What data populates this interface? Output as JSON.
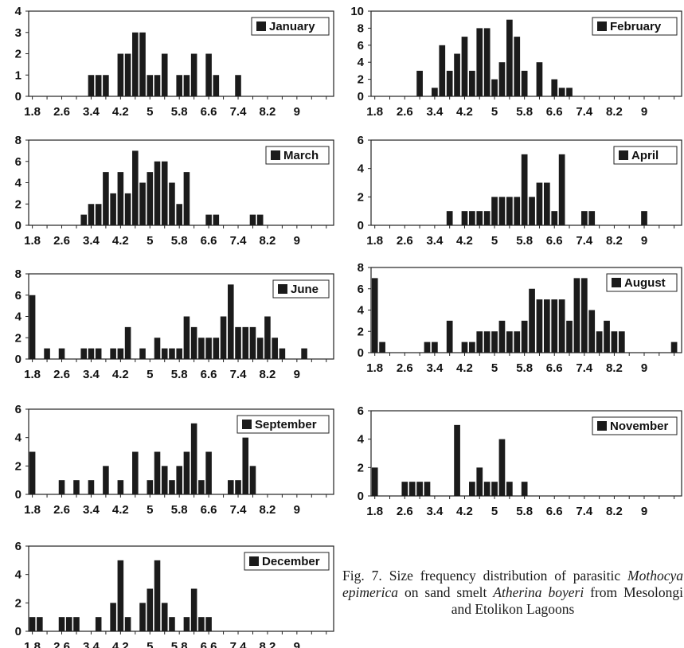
{
  "caption": {
    "fig": "Fig. 7.",
    "t1": "Size frequency distribution of parasitic",
    "species": "Mothocya epimerica",
    "t2": "on sand smelt",
    "host": "Atherina boyeri",
    "t3": "from Mesolongi and Etolikon Lagoons"
  },
  "chart_data": [
    {
      "type": "bar",
      "legend": "January",
      "x_ticks": [
        "1.8",
        "2.6",
        "3.4",
        "4.2",
        "5",
        "5.8",
        "6.6",
        "7.4",
        "8.2",
        "9"
      ],
      "ylim": [
        0,
        4
      ],
      "y_ticks": [
        0,
        1,
        2,
        3,
        4
      ],
      "grid": false,
      "legend_position": "top-right",
      "x": [
        3.4,
        3.6,
        3.8,
        4.2,
        4.4,
        4.6,
        4.8,
        5.0,
        5.2,
        5.4,
        5.8,
        6.0,
        6.2,
        6.6,
        6.8,
        7.4
      ],
      "values": [
        1,
        1,
        1,
        2,
        2,
        3,
        3,
        1,
        1,
        2,
        1,
        1,
        2,
        2,
        1,
        1
      ]
    },
    {
      "type": "bar",
      "legend": "February",
      "x_ticks": [
        "1.8",
        "2.6",
        "3.4",
        "4.2",
        "5",
        "5.8",
        "6.6",
        "7.4",
        "8.2",
        "9"
      ],
      "ylim": [
        0,
        10
      ],
      "y_ticks": [
        0,
        2,
        4,
        6,
        8,
        10
      ],
      "grid": false,
      "legend_position": "top-right",
      "x": [
        3.0,
        3.4,
        3.6,
        3.8,
        4.0,
        4.2,
        4.4,
        4.6,
        4.8,
        5.0,
        5.2,
        5.4,
        5.6,
        5.8,
        6.2,
        6.6,
        6.8,
        7.0
      ],
      "values": [
        3,
        1,
        6,
        3,
        5,
        7,
        3,
        8,
        8,
        2,
        4,
        9,
        7,
        3,
        4,
        2,
        1,
        1
      ]
    },
    {
      "type": "bar",
      "legend": "March",
      "x_ticks": [
        "1.8",
        "2.6",
        "3.4",
        "4.2",
        "5",
        "5.8",
        "6.6",
        "7.4",
        "8.2",
        "9"
      ],
      "ylim": [
        0,
        8
      ],
      "y_ticks": [
        0,
        2,
        4,
        6,
        8
      ],
      "grid": false,
      "legend_position": "top-right",
      "x": [
        3.2,
        3.4,
        3.6,
        3.8,
        4.0,
        4.2,
        4.4,
        4.6,
        4.8,
        5.0,
        5.2,
        5.4,
        5.6,
        5.8,
        6.0,
        6.2,
        6.6,
        6.8,
        7.8,
        8.0
      ],
      "values": [
        1,
        2,
        2,
        5,
        3,
        5,
        3,
        7,
        4,
        5,
        6,
        6,
        4,
        2,
        5,
        0,
        1,
        1,
        1,
        1
      ]
    },
    {
      "type": "bar",
      "legend": "April",
      "x_ticks": [
        "1.8",
        "2.6",
        "3.4",
        "4.2",
        "5",
        "5.8",
        "6.6",
        "7.4",
        "8.2",
        "9"
      ],
      "ylim": [
        0,
        6
      ],
      "y_ticks": [
        0,
        2,
        4,
        6
      ],
      "grid": false,
      "legend_position": "top-right",
      "x": [
        3.8,
        4.2,
        4.4,
        4.6,
        4.8,
        5.0,
        5.2,
        5.4,
        5.6,
        5.8,
        6.0,
        6.2,
        6.4,
        6.6,
        6.8,
        7.0,
        7.4,
        7.6,
        9.0
      ],
      "values": [
        1,
        1,
        1,
        1,
        1,
        2,
        2,
        2,
        2,
        5,
        2,
        3,
        3,
        1,
        5,
        0,
        1,
        1,
        1
      ]
    },
    {
      "type": "bar",
      "legend": "June",
      "x_ticks": [
        "1.8",
        "2.6",
        "3.4",
        "4.2",
        "5",
        "5.8",
        "6.6",
        "7.4",
        "8.2",
        "9"
      ],
      "ylim": [
        0,
        8
      ],
      "y_ticks": [
        0,
        2,
        4,
        6,
        8
      ],
      "grid": false,
      "legend_position": "top-right",
      "x": [
        1.8,
        2.2,
        2.6,
        3.2,
        3.4,
        3.6,
        4.0,
        4.2,
        4.4,
        4.8,
        5.2,
        5.4,
        5.6,
        5.8,
        6.0,
        6.2,
        6.4,
        6.6,
        6.8,
        7.0,
        7.2,
        7.4,
        7.6,
        7.8,
        8.0,
        8.2,
        8.4,
        8.6,
        9.2
      ],
      "values": [
        6,
        1,
        1,
        1,
        1,
        1,
        1,
        1,
        3,
        1,
        2,
        1,
        1,
        1,
        4,
        3,
        2,
        2,
        2,
        4,
        7,
        3,
        3,
        3,
        2,
        4,
        2,
        1,
        1
      ]
    },
    {
      "type": "bar",
      "legend": "August",
      "x_ticks": [
        "1.8",
        "2.6",
        "3.4",
        "4.2",
        "5",
        "5.8",
        "6.6",
        "7.4",
        "8.2",
        "9"
      ],
      "ylim": [
        0,
        8
      ],
      "y_ticks": [
        0,
        2,
        4,
        6,
        8
      ],
      "grid": false,
      "legend_position": "top-right",
      "x": [
        1.8,
        2.0,
        3.2,
        3.4,
        3.8,
        4.2,
        4.4,
        4.6,
        4.8,
        5.0,
        5.2,
        5.4,
        5.6,
        5.8,
        6.0,
        6.2,
        6.4,
        6.6,
        6.8,
        7.0,
        7.2,
        7.4,
        7.6,
        7.8,
        8.0,
        8.2,
        8.4,
        9.8
      ],
      "values": [
        7,
        1,
        1,
        1,
        3,
        1,
        1,
        2,
        2,
        2,
        3,
        2,
        2,
        3,
        6,
        5,
        5,
        5,
        5,
        3,
        7,
        7,
        4,
        2,
        3,
        2,
        2,
        1
      ]
    },
    {
      "type": "bar",
      "legend": "September",
      "x_ticks": [
        "1.8",
        "2.6",
        "3.4",
        "4.2",
        "5",
        "5.8",
        "6.6",
        "7.4",
        "8.2",
        "9"
      ],
      "ylim": [
        0,
        6
      ],
      "y_ticks": [
        0,
        2,
        4,
        6
      ],
      "grid": false,
      "legend_position": "top-right",
      "x": [
        1.8,
        2.6,
        3.0,
        3.4,
        3.8,
        4.2,
        4.6,
        5.0,
        5.2,
        5.4,
        5.6,
        5.8,
        6.0,
        6.2,
        6.4,
        6.6,
        7.2,
        7.4,
        7.6,
        7.8
      ],
      "values": [
        3,
        1,
        1,
        1,
        2,
        1,
        3,
        1,
        3,
        2,
        1,
        2,
        3,
        5,
        1,
        3,
        1,
        1,
        4,
        2
      ]
    },
    {
      "type": "bar",
      "legend": "November",
      "x_ticks": [
        "1.8",
        "2.6",
        "3.4",
        "4.2",
        "5",
        "5.8",
        "6.6",
        "7.4",
        "8.2",
        "9"
      ],
      "ylim": [
        0,
        6
      ],
      "y_ticks": [
        0,
        2,
        4,
        6
      ],
      "grid": false,
      "legend_position": "top-right",
      "x": [
        1.8,
        2.6,
        2.8,
        3.0,
        3.2,
        4.0,
        4.4,
        4.6,
        4.8,
        5.0,
        5.2,
        5.4,
        5.8
      ],
      "values": [
        2,
        1,
        1,
        1,
        1,
        5,
        1,
        2,
        1,
        1,
        4,
        1,
        1
      ]
    },
    {
      "type": "bar",
      "legend": "December",
      "x_ticks": [
        "1.8",
        "2.6",
        "3.4",
        "4.2",
        "5",
        "5.8",
        "6.6",
        "7.4",
        "8.2",
        "9"
      ],
      "ylim": [
        0,
        6
      ],
      "y_ticks": [
        0,
        2,
        4,
        6
      ],
      "grid": false,
      "legend_position": "top-right",
      "x": [
        1.8,
        2.0,
        2.6,
        2.8,
        3.0,
        3.6,
        4.0,
        4.2,
        4.4,
        4.8,
        5.0,
        5.2,
        5.4,
        5.6,
        6.0,
        6.2,
        6.4,
        6.6
      ],
      "values": [
        1,
        1,
        1,
        1,
        1,
        1,
        2,
        5,
        1,
        2,
        3,
        5,
        2,
        1,
        1,
        3,
        1,
        1
      ]
    }
  ]
}
